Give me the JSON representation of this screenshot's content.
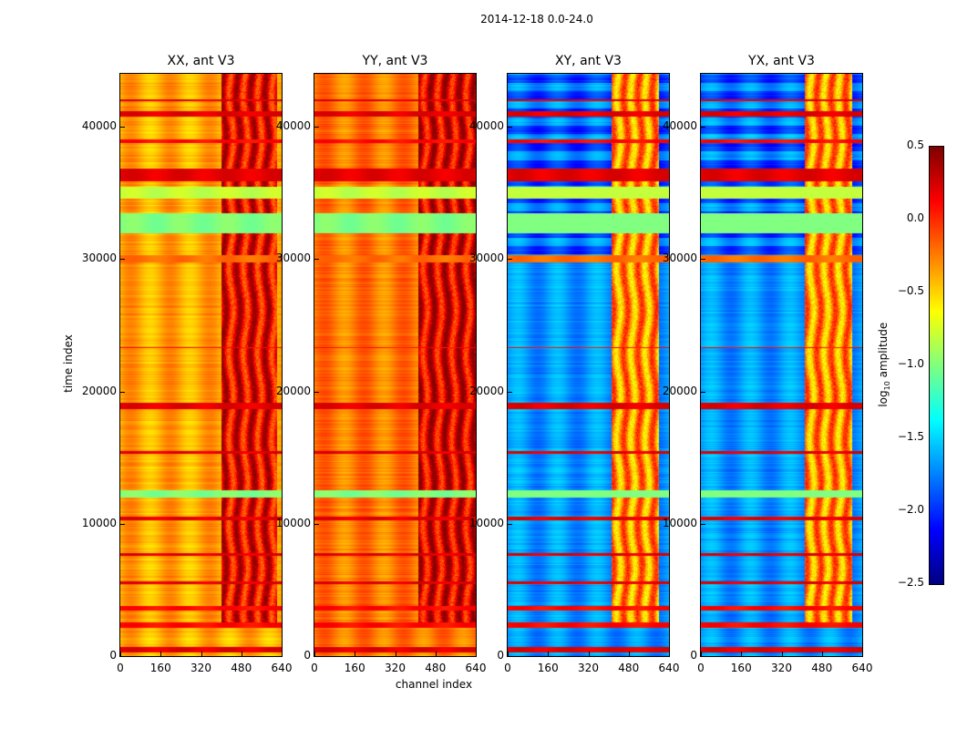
{
  "chart_data": {
    "type": "heatmap",
    "title": "2014-12-18 0.0-24.0",
    "xlabel": "channel index",
    "ylabel": "time index",
    "xlim": [
      0,
      640
    ],
    "ylim": [
      0,
      44000
    ],
    "xticks": [
      "0",
      "160",
      "320",
      "480",
      "640"
    ],
    "yticks": [
      "0",
      "10000",
      "20000",
      "30000",
      "40000"
    ],
    "colormap": "jet",
    "colorbar": {
      "label_prefix": "log",
      "label_sub": "10",
      "label_suffix": " amplitude",
      "range": [
        -2.5,
        0.5
      ],
      "ticks": [
        "0.5",
        "0.0",
        "−0.5",
        "−1.0",
        "−1.5",
        "−2.0",
        "−2.5"
      ]
    },
    "panels": [
      {
        "title": "XX, ant V3",
        "base_level": -0.45,
        "rfi_level": 0.15,
        "rfi_channels": [
          400,
          620
        ]
      },
      {
        "title": "YY, ant V3",
        "base_level": -0.3,
        "rfi_level": 0.2,
        "rfi_channels": [
          410,
          640
        ]
      },
      {
        "title": "XY, ant V3",
        "base_level": -1.75,
        "rfi_level": -0.3,
        "rfi_channels": [
          410,
          600
        ]
      },
      {
        "title": "YX, ant V3",
        "base_level": -1.75,
        "rfi_level": -0.3,
        "rfi_channels": [
          410,
          600
        ]
      }
    ],
    "time_bands": [
      {
        "from": 300,
        "to": 700,
        "value": 0.2
      },
      {
        "from": 2200,
        "to": 2600,
        "value": 0.1
      },
      {
        "from": 3500,
        "to": 3800,
        "value": 0.1
      },
      {
        "from": 5500,
        "to": 5700,
        "value": 0.2
      },
      {
        "from": 7600,
        "to": 7800,
        "value": 0.2
      },
      {
        "from": 10300,
        "to": 10600,
        "value": 0.2
      },
      {
        "from": 12000,
        "to": 12600,
        "value": -1.0
      },
      {
        "from": 15300,
        "to": 15500,
        "value": 0.2
      },
      {
        "from": 18700,
        "to": 19200,
        "value": 0.2
      },
      {
        "from": 23300,
        "to": 23400,
        "value": 0.1
      },
      {
        "from": 29800,
        "to": 30300,
        "value": -0.2
      },
      {
        "from": 32000,
        "to": 33500,
        "value": -1.0
      },
      {
        "from": 34600,
        "to": 35500,
        "value": -0.8
      },
      {
        "from": 35900,
        "to": 36900,
        "value": 0.2
      },
      {
        "from": 38800,
        "to": 39100,
        "value": 0.1
      },
      {
        "from": 40800,
        "to": 41200,
        "value": 0.2
      },
      {
        "from": 42000,
        "to": 42100,
        "value": 0.2
      }
    ]
  }
}
